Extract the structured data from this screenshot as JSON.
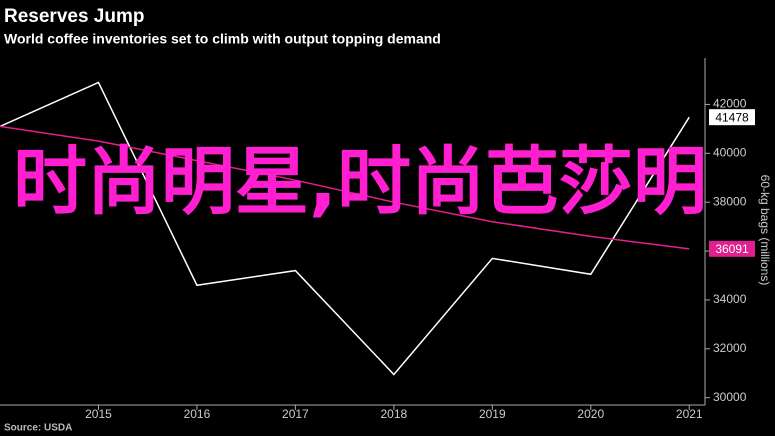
{
  "chart_data": {
    "type": "line",
    "title": "Reserves Jump",
    "subtitle": "World coffee inventories set to climb with output topping demand",
    "y_label": "60-kg bags (millions)",
    "source": "Source: USDA",
    "overlay_text": "时尚明星,时尚芭莎明",
    "x": [
      2014,
      2015,
      2016,
      2017,
      2018,
      2019,
      2020,
      2021
    ],
    "xlim": [
      2014,
      2021.16
    ],
    "xticks": [
      2015,
      2016,
      2017,
      2018,
      2019,
      2020,
      2021
    ],
    "ylim": [
      29700,
      43900
    ],
    "yticks": [
      30000,
      32000,
      34000,
      36000,
      38000,
      40000,
      42000
    ],
    "series": [
      {
        "color": "#ffffff",
        "values": [
          41100,
          42900,
          34600,
          35200,
          30950,
          35700,
          35050,
          41478
        ]
      },
      {
        "color": "#e0208f",
        "values": [
          41100,
          40500,
          39700,
          38900,
          38000,
          37200,
          36600,
          36091
        ]
      }
    ]
  }
}
